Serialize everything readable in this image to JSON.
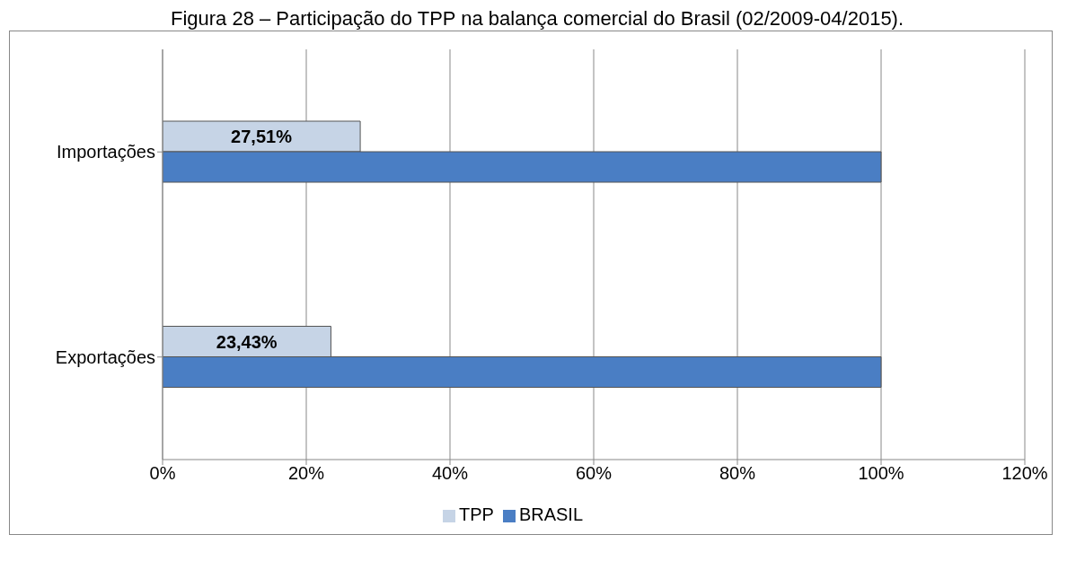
{
  "chart_data": {
    "type": "bar",
    "orientation": "horizontal",
    "title": "Figura 28 – Participação do TPP na balança comercial do Brasil (02/2009-04/2015).",
    "categories": [
      "Importações",
      "Exportações"
    ],
    "series": [
      {
        "name": "TPP",
        "color": "#c6d4e6",
        "values": [
          27.51,
          23.43
        ],
        "value_labels": [
          "27,51%",
          "23,43%"
        ]
      },
      {
        "name": "BRASIL",
        "color": "#4a7ec4",
        "values": [
          100,
          100
        ]
      }
    ],
    "xlim": [
      0,
      120
    ],
    "xticks": [
      {
        "value": 0,
        "label": "0%"
      },
      {
        "value": 20,
        "label": "20%"
      },
      {
        "value": 40,
        "label": "40%"
      },
      {
        "value": 60,
        "label": "60%"
      },
      {
        "value": 80,
        "label": "80%"
      },
      {
        "value": 100,
        "label": "100%"
      },
      {
        "value": 120,
        "label": "120%"
      }
    ],
    "grid": "x",
    "legend": "bottom"
  }
}
